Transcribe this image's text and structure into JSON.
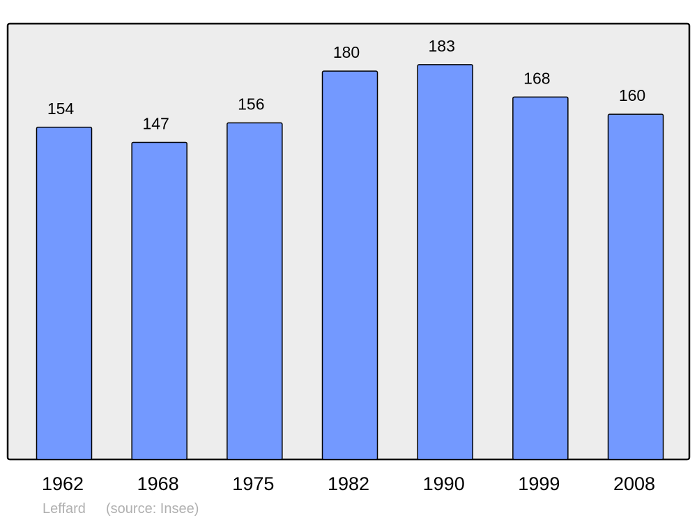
{
  "chart_data": {
    "type": "bar",
    "categories": [
      "1962",
      "1968",
      "1975",
      "1982",
      "1990",
      "1999",
      "2008"
    ],
    "values": [
      154,
      147,
      156,
      180,
      183,
      168,
      160
    ],
    "title": "",
    "xlabel": "",
    "ylabel": "",
    "ylim": [
      0,
      202
    ],
    "grid": false,
    "bar_color": "#7399ff",
    "background_color": "#ededed",
    "footer": {
      "place": "Leffard",
      "source": "(source: Insee)"
    }
  }
}
